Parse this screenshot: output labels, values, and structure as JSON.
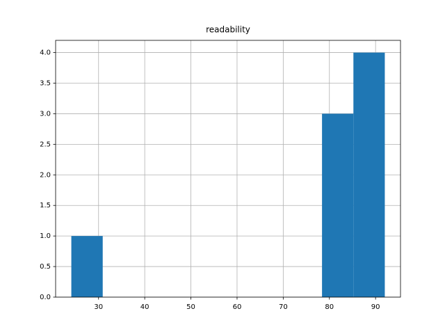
{
  "chart_data": {
    "type": "histogram",
    "title": "readability",
    "bins": [
      24.1,
      30.9,
      37.7,
      44.5,
      51.2,
      58.0,
      64.8,
      71.6,
      78.4,
      85.2,
      92.0
    ],
    "counts": [
      1,
      0,
      0,
      0,
      0,
      0,
      0,
      0,
      3,
      4
    ],
    "color": "#1f77b4",
    "xlim": [
      20.7,
      95.4
    ],
    "xticks": [
      30,
      40,
      50,
      60,
      70,
      80,
      90
    ],
    "ylim": [
      0,
      4.2
    ],
    "yticks": [
      {
        "value": 0,
        "label": "0.0"
      },
      {
        "value": 0.5,
        "label": "0.5"
      },
      {
        "value": 1,
        "label": "1.0"
      },
      {
        "value": 1.5,
        "label": "1.5"
      },
      {
        "value": 2,
        "label": "2.0"
      },
      {
        "value": 2.5,
        "label": "2.5"
      },
      {
        "value": 3,
        "label": "3.0"
      },
      {
        "value": 3.5,
        "label": "3.5"
      },
      {
        "value": 4,
        "label": "4.0"
      }
    ],
    "grid": true
  }
}
